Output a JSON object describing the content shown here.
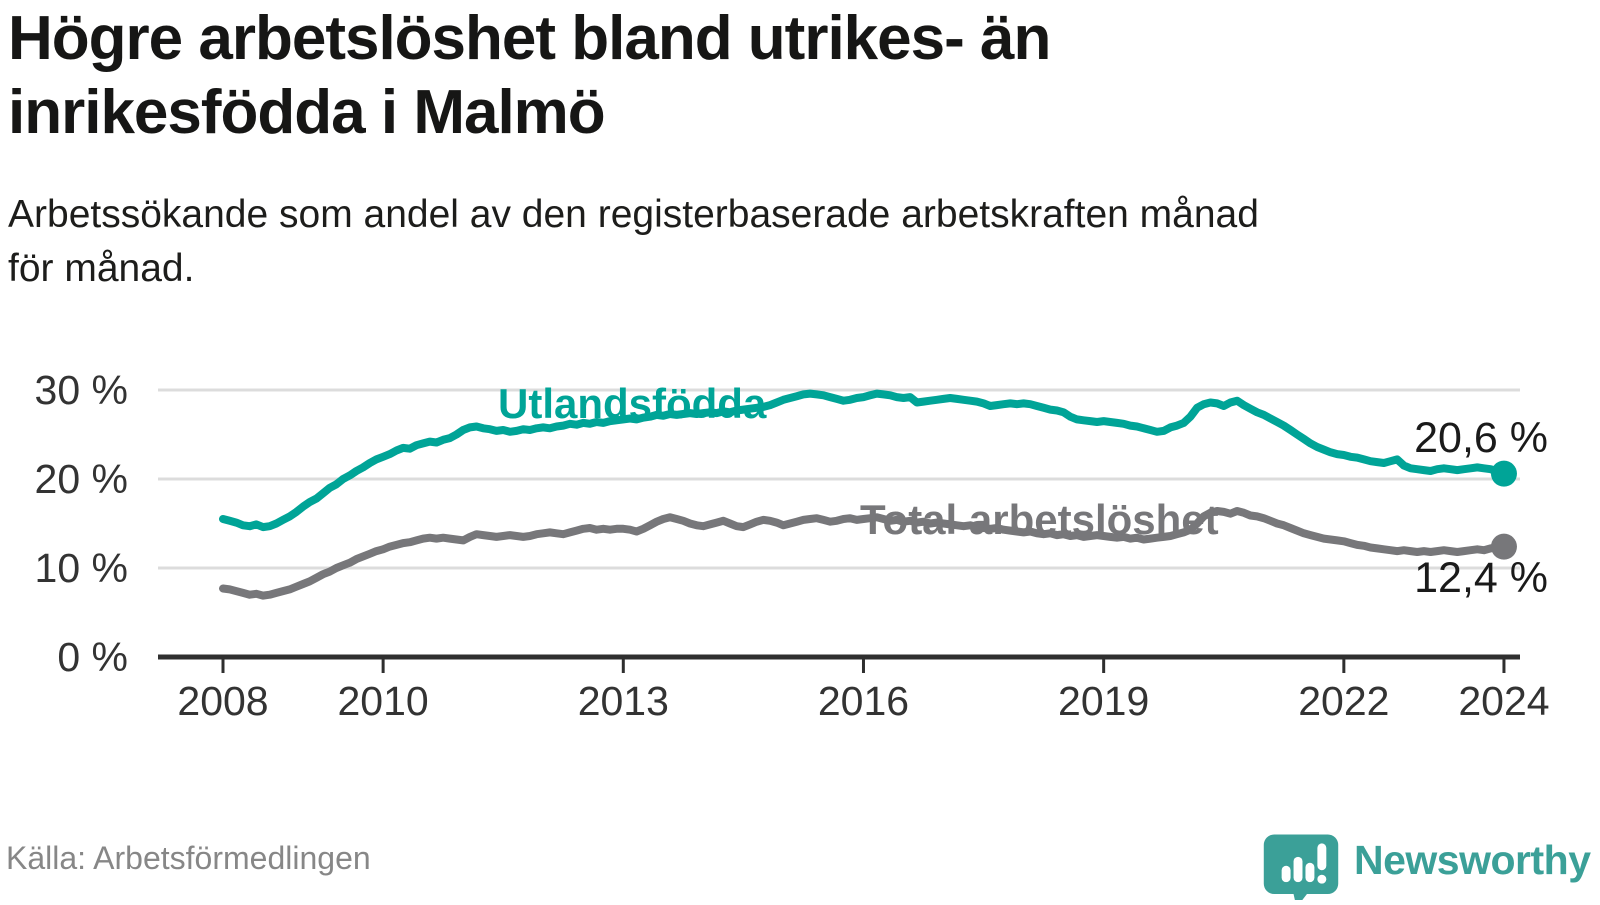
{
  "header": {
    "title_lines": [
      "Högre arbetslöshet bland utrikes- än",
      "inrikesfödda i Malmö"
    ],
    "subtitle_lines": [
      "Arbetssökande som andel av den registerbaserade arbetskraften månad",
      "för månad."
    ]
  },
  "footer": {
    "source": "Källa: Arbetsförmedlingen",
    "brand_name": "Newsworthy"
  },
  "colors": {
    "foreign_line": "#00a497",
    "total_line": "#77777a",
    "grid": "#dcdcdc",
    "axis": "#2f2f2f",
    "tick_text": "#333333",
    "value_text": "#1a1a1a",
    "brand_teal": "#3ba098",
    "source_text": "#878787"
  },
  "chart_data": {
    "type": "line",
    "title": "Högre arbetslöshet bland utrikes- än inrikesfödda i Malmö",
    "subtitle": "Arbetssökande som andel av den registerbaserade arbetskraften månad för månad.",
    "xlabel": "",
    "ylabel": "",
    "unit": "%",
    "grid": true,
    "legend_position": "inline-labels",
    "x_start_year": 2008,
    "points_per_year": 12,
    "x_tick_years": [
      2008,
      2010,
      2013,
      2016,
      2019,
      2022,
      2024
    ],
    "y_ticks": [
      {
        "value": 0,
        "label": "0 %"
      },
      {
        "value": 10,
        "label": "10 %"
      },
      {
        "value": 20,
        "label": "20 %"
      },
      {
        "value": 30,
        "label": "30 %"
      }
    ],
    "ylim": [
      0,
      32
    ],
    "series": [
      {
        "name": "Utlandsfödda",
        "color": "#00a497",
        "end_label": "20,6 %",
        "end_value": 20.6,
        "values": [
          15.5,
          15.3,
          15.1,
          14.8,
          14.7,
          14.9,
          14.6,
          14.7,
          15.0,
          15.4,
          15.8,
          16.3,
          16.9,
          17.4,
          17.8,
          18.4,
          19.0,
          19.4,
          20.0,
          20.4,
          20.9,
          21.3,
          21.8,
          22.2,
          22.5,
          22.8,
          23.2,
          23.5,
          23.4,
          23.8,
          24.0,
          24.2,
          24.1,
          24.4,
          24.6,
          25.0,
          25.5,
          25.8,
          25.9,
          25.7,
          25.6,
          25.4,
          25.5,
          25.3,
          25.4,
          25.6,
          25.5,
          25.7,
          25.8,
          25.7,
          25.9,
          26.0,
          26.2,
          26.1,
          26.3,
          26.2,
          26.4,
          26.3,
          26.5,
          26.6,
          26.7,
          26.8,
          26.7,
          26.9,
          27.0,
          27.2,
          27.1,
          27.3,
          27.2,
          27.3,
          27.4,
          27.3,
          27.4,
          27.5,
          27.4,
          27.6,
          27.5,
          27.7,
          27.8,
          27.9,
          28.0,
          28.1,
          28.3,
          28.6,
          28.9,
          29.1,
          29.3,
          29.5,
          29.6,
          29.5,
          29.4,
          29.2,
          29.0,
          28.8,
          28.9,
          29.1,
          29.2,
          29.4,
          29.6,
          29.5,
          29.4,
          29.2,
          29.1,
          29.2,
          28.6,
          28.7,
          28.8,
          28.9,
          29.0,
          29.1,
          29.0,
          28.9,
          28.8,
          28.7,
          28.5,
          28.2,
          28.3,
          28.4,
          28.5,
          28.4,
          28.5,
          28.4,
          28.2,
          28.0,
          27.8,
          27.7,
          27.5,
          27.0,
          26.7,
          26.6,
          26.5,
          26.4,
          26.5,
          26.4,
          26.3,
          26.2,
          26.0,
          25.9,
          25.7,
          25.5,
          25.3,
          25.4,
          25.8,
          26.0,
          26.3,
          27.0,
          28.0,
          28.4,
          28.6,
          28.5,
          28.2,
          28.6,
          28.8,
          28.3,
          27.9,
          27.5,
          27.2,
          26.8,
          26.4,
          26.0,
          25.5,
          25.0,
          24.5,
          24.0,
          23.6,
          23.3,
          23.0,
          22.8,
          22.7,
          22.5,
          22.4,
          22.2,
          22.0,
          21.9,
          21.8,
          22.0,
          22.2,
          21.5,
          21.2,
          21.1,
          21.0,
          20.9,
          21.1,
          21.2,
          21.1,
          21.0,
          21.1,
          21.2,
          21.3,
          21.2,
          21.1,
          20.9,
          20.6
        ]
      },
      {
        "name": "Total arbetslöshet",
        "color": "#77777a",
        "end_label": "12,4 %",
        "end_value": 12.4,
        "values": [
          7.7,
          7.6,
          7.4,
          7.2,
          7.0,
          7.1,
          6.9,
          7.0,
          7.2,
          7.4,
          7.6,
          7.9,
          8.2,
          8.5,
          8.9,
          9.3,
          9.6,
          10.0,
          10.3,
          10.6,
          11.0,
          11.3,
          11.6,
          11.9,
          12.1,
          12.4,
          12.6,
          12.8,
          12.9,
          13.1,
          13.3,
          13.4,
          13.3,
          13.4,
          13.3,
          13.2,
          13.1,
          13.5,
          13.8,
          13.7,
          13.6,
          13.5,
          13.6,
          13.7,
          13.6,
          13.5,
          13.6,
          13.8,
          13.9,
          14.0,
          13.9,
          13.8,
          14.0,
          14.2,
          14.4,
          14.5,
          14.3,
          14.4,
          14.3,
          14.4,
          14.4,
          14.3,
          14.1,
          14.4,
          14.8,
          15.2,
          15.5,
          15.7,
          15.5,
          15.3,
          15.0,
          14.8,
          14.7,
          14.9,
          15.1,
          15.3,
          15.0,
          14.7,
          14.6,
          14.9,
          15.2,
          15.4,
          15.3,
          15.1,
          14.8,
          15.0,
          15.2,
          15.4,
          15.5,
          15.6,
          15.4,
          15.2,
          15.3,
          15.5,
          15.6,
          15.4,
          15.5,
          15.6,
          15.7,
          15.5,
          15.3,
          15.4,
          15.2,
          15.3,
          15.1,
          15.2,
          15.0,
          15.1,
          15.0,
          14.9,
          14.8,
          14.7,
          14.8,
          14.6,
          14.5,
          14.4,
          14.5,
          14.3,
          14.2,
          14.1,
          14.0,
          14.1,
          13.9,
          13.8,
          13.9,
          13.7,
          13.8,
          13.6,
          13.7,
          13.5,
          13.6,
          13.7,
          13.6,
          13.5,
          13.4,
          13.5,
          13.3,
          13.4,
          13.2,
          13.3,
          13.4,
          13.5,
          13.6,
          13.8,
          14.0,
          14.3,
          15.0,
          15.8,
          16.2,
          16.4,
          16.3,
          16.1,
          16.4,
          16.2,
          15.9,
          15.8,
          15.6,
          15.3,
          15.0,
          14.8,
          14.5,
          14.2,
          13.9,
          13.7,
          13.5,
          13.3,
          13.2,
          13.1,
          13.0,
          12.8,
          12.6,
          12.5,
          12.3,
          12.2,
          12.1,
          12.0,
          11.9,
          12.0,
          11.9,
          11.8,
          11.9,
          11.8,
          11.9,
          12.0,
          11.9,
          11.8,
          11.9,
          12.0,
          12.1,
          12.0,
          12.2,
          12.3,
          12.4
        ]
      }
    ]
  }
}
